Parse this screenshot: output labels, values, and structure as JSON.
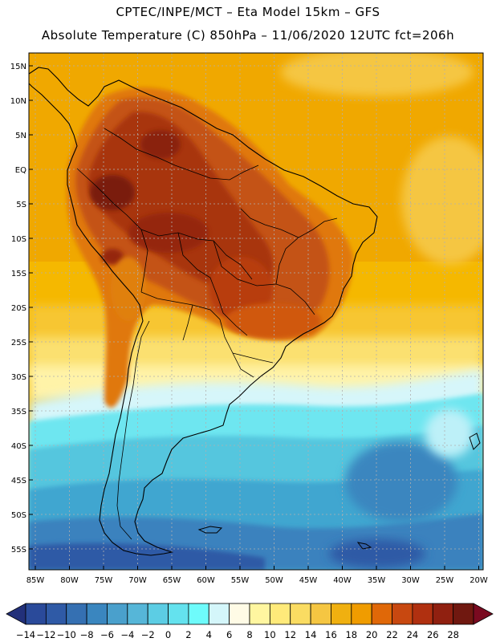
{
  "header": {
    "line1": "CPTEC/INPE/MCT –  Eta Model 15km – GFS",
    "line2": "Absolute Temperature (C) 850hPa – 11/06/2020 12UTC fct=206h"
  },
  "map": {
    "lat_labels": [
      "15N",
      "10N",
      "5N",
      "EQ",
      "5S",
      "10S",
      "15S",
      "20S",
      "25S",
      "30S",
      "35S",
      "40S",
      "45S",
      "50S",
      "55S"
    ],
    "lon_labels": [
      "85W",
      "80W",
      "75W",
      "70W",
      "65W",
      "60W",
      "55W",
      "50W",
      "45W",
      "40W",
      "35W",
      "30W",
      "25W",
      "20W"
    ]
  },
  "colorbar": {
    "tick_labels": [
      "-14",
      "-12",
      "-10",
      "-8",
      "-6",
      "-4",
      "-2",
      "0",
      "2",
      "4",
      "6",
      "8",
      "10",
      "12",
      "14",
      "16",
      "18",
      "20",
      "22",
      "24",
      "26",
      "28"
    ],
    "colors": [
      "#2a4a9a",
      "#2f5aa6",
      "#3570b2",
      "#3a86bf",
      "#4aa0cc",
      "#56b6d8",
      "#5ccde4",
      "#64e2ee",
      "#6efbfb",
      "#d4f6fa",
      "#fffbe6",
      "#fff6a0",
      "#ffea7a",
      "#fadc62",
      "#f5c642",
      "#f0b010",
      "#f09c00",
      "#e06808",
      "#c84810",
      "#b03010",
      "#902010",
      "#701810"
    ],
    "under_color": "#22307a",
    "over_color": "#7a0a20"
  }
}
